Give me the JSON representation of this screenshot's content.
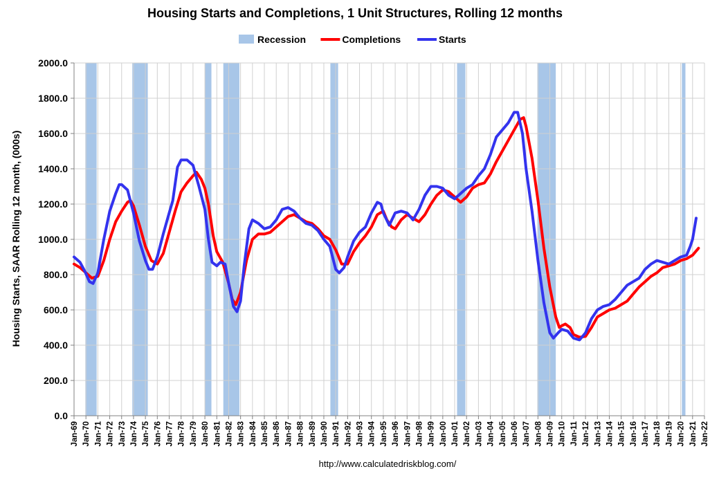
{
  "chart_data": {
    "type": "line",
    "title": "Housing Starts and Completions, 1 Unit Structures, Rolling 12 months",
    "ylabel": "Housing Starts, SAAR Rolling 12 month, (000s)",
    "xlabel": "",
    "source": "http://www.calculatedriskblog.com/",
    "ylim": [
      0,
      2000
    ],
    "xlim": [
      1969.0,
      2022.0
    ],
    "yticks": [
      "0.0",
      "200.0",
      "400.0",
      "600.0",
      "800.0",
      "1000.0",
      "1200.0",
      "1400.0",
      "1600.0",
      "1800.0",
      "2000.0"
    ],
    "xticks": [
      "Jan-69",
      "Jan-70",
      "Jan-71",
      "Jan-72",
      "Jan-73",
      "Jan-74",
      "Jan-75",
      "Jan-76",
      "Jan-77",
      "Jan-78",
      "Jan-79",
      "Jan-80",
      "Jan-81",
      "Jan-82",
      "Jan-83",
      "Jan-84",
      "Jan-85",
      "Jan-86",
      "Jan-87",
      "Jan-88",
      "Jan-89",
      "Jan-90",
      "Jan-91",
      "Jan-92",
      "Jan-93",
      "Jan-94",
      "Jan-95",
      "Jan-96",
      "Jan-97",
      "Jan-98",
      "Jan-99",
      "Jan-00",
      "Jan-01",
      "Jan-02",
      "Jan-03",
      "Jan-04",
      "Jan-05",
      "Jan-06",
      "Jan-07",
      "Jan-08",
      "Jan-09",
      "Jan-10",
      "Jan-11",
      "Jan-12",
      "Jan-13",
      "Jan-14",
      "Jan-15",
      "Jan-16",
      "Jan-17",
      "Jan-18",
      "Jan-19",
      "Jan-20",
      "Jan-21",
      "Jan-22"
    ],
    "grid": true,
    "legend_placement": "top-center",
    "recessions": [
      {
        "start": 1969.95,
        "end": 1970.9
      },
      {
        "start": 1973.9,
        "end": 1975.2
      },
      {
        "start": 1980.0,
        "end": 1980.55
      },
      {
        "start": 1981.55,
        "end": 1982.9
      },
      {
        "start": 1990.55,
        "end": 1991.2
      },
      {
        "start": 2001.2,
        "end": 2001.9
      },
      {
        "start": 2007.95,
        "end": 2009.5
      },
      {
        "start": 2020.1,
        "end": 2020.4
      }
    ],
    "series": [
      {
        "name": "Completions",
        "color": "#ff0000",
        "points": [
          [
            1969.0,
            860
          ],
          [
            1969.5,
            840
          ],
          [
            1970.0,
            810
          ],
          [
            1970.5,
            780
          ],
          [
            1971.0,
            790
          ],
          [
            1971.5,
            880
          ],
          [
            1972.0,
            1000
          ],
          [
            1972.5,
            1100
          ],
          [
            1973.0,
            1160
          ],
          [
            1973.5,
            1210
          ],
          [
            1973.75,
            1220
          ],
          [
            1974.0,
            1190
          ],
          [
            1974.5,
            1080
          ],
          [
            1975.0,
            960
          ],
          [
            1975.5,
            880
          ],
          [
            1976.0,
            860
          ],
          [
            1976.5,
            920
          ],
          [
            1977.0,
            1040
          ],
          [
            1977.5,
            1160
          ],
          [
            1978.0,
            1270
          ],
          [
            1978.5,
            1320
          ],
          [
            1979.0,
            1360
          ],
          [
            1979.3,
            1380
          ],
          [
            1979.7,
            1340
          ],
          [
            1980.0,
            1290
          ],
          [
            1980.3,
            1200
          ],
          [
            1980.7,
            1020
          ],
          [
            1981.0,
            930
          ],
          [
            1981.5,
            870
          ],
          [
            1982.0,
            750
          ],
          [
            1982.3,
            660
          ],
          [
            1982.6,
            630
          ],
          [
            1983.0,
            700
          ],
          [
            1983.5,
            880
          ],
          [
            1984.0,
            1000
          ],
          [
            1984.5,
            1030
          ],
          [
            1985.0,
            1030
          ],
          [
            1985.5,
            1040
          ],
          [
            1986.0,
            1070
          ],
          [
            1986.5,
            1100
          ],
          [
            1987.0,
            1130
          ],
          [
            1987.5,
            1140
          ],
          [
            1988.0,
            1120
          ],
          [
            1988.5,
            1100
          ],
          [
            1989.0,
            1090
          ],
          [
            1989.5,
            1060
          ],
          [
            1990.0,
            1020
          ],
          [
            1990.5,
            1000
          ],
          [
            1991.0,
            940
          ],
          [
            1991.5,
            860
          ],
          [
            1992.0,
            860
          ],
          [
            1992.5,
            930
          ],
          [
            1993.0,
            980
          ],
          [
            1993.5,
            1020
          ],
          [
            1994.0,
            1070
          ],
          [
            1994.5,
            1140
          ],
          [
            1995.0,
            1160
          ],
          [
            1995.3,
            1110
          ],
          [
            1995.7,
            1070
          ],
          [
            1996.0,
            1060
          ],
          [
            1996.5,
            1110
          ],
          [
            1997.0,
            1140
          ],
          [
            1997.5,
            1120
          ],
          [
            1998.0,
            1100
          ],
          [
            1998.5,
            1140
          ],
          [
            1999.0,
            1200
          ],
          [
            1999.5,
            1250
          ],
          [
            2000.0,
            1280
          ],
          [
            2000.5,
            1270
          ],
          [
            2001.0,
            1240
          ],
          [
            2001.5,
            1210
          ],
          [
            2002.0,
            1240
          ],
          [
            2002.5,
            1290
          ],
          [
            2003.0,
            1310
          ],
          [
            2003.5,
            1320
          ],
          [
            2004.0,
            1370
          ],
          [
            2004.5,
            1440
          ],
          [
            2005.0,
            1500
          ],
          [
            2005.5,
            1560
          ],
          [
            2006.0,
            1620
          ],
          [
            2006.5,
            1680
          ],
          [
            2006.8,
            1690
          ],
          [
            2007.0,
            1640
          ],
          [
            2007.5,
            1460
          ],
          [
            2008.0,
            1220
          ],
          [
            2008.5,
            950
          ],
          [
            2009.0,
            730
          ],
          [
            2009.5,
            560
          ],
          [
            2009.8,
            500
          ],
          [
            2010.0,
            510
          ],
          [
            2010.3,
            520
          ],
          [
            2010.7,
            500
          ],
          [
            2011.0,
            460
          ],
          [
            2011.5,
            445
          ],
          [
            2012.0,
            450
          ],
          [
            2012.5,
            500
          ],
          [
            2013.0,
            560
          ],
          [
            2013.5,
            580
          ],
          [
            2014.0,
            600
          ],
          [
            2014.5,
            610
          ],
          [
            2015.0,
            630
          ],
          [
            2015.5,
            650
          ],
          [
            2016.0,
            690
          ],
          [
            2016.5,
            730
          ],
          [
            2017.0,
            760
          ],
          [
            2017.5,
            790
          ],
          [
            2018.0,
            810
          ],
          [
            2018.5,
            840
          ],
          [
            2019.0,
            850
          ],
          [
            2019.5,
            860
          ],
          [
            2020.0,
            880
          ],
          [
            2020.5,
            890
          ],
          [
            2021.0,
            910
          ],
          [
            2021.5,
            950
          ]
        ]
      },
      {
        "name": "Starts",
        "color": "#3333ee",
        "points": [
          [
            1969.0,
            900
          ],
          [
            1969.5,
            870
          ],
          [
            1969.9,
            820
          ],
          [
            1970.3,
            760
          ],
          [
            1970.6,
            750
          ],
          [
            1971.0,
            810
          ],
          [
            1971.5,
            1000
          ],
          [
            1972.0,
            1160
          ],
          [
            1972.5,
            1260
          ],
          [
            1972.8,
            1310
          ],
          [
            1973.0,
            1310
          ],
          [
            1973.5,
            1280
          ],
          [
            1974.0,
            1150
          ],
          [
            1974.5,
            990
          ],
          [
            1975.0,
            880
          ],
          [
            1975.3,
            830
          ],
          [
            1975.6,
            830
          ],
          [
            1976.0,
            900
          ],
          [
            1976.5,
            1030
          ],
          [
            1977.0,
            1150
          ],
          [
            1977.3,
            1220
          ],
          [
            1977.7,
            1410
          ],
          [
            1978.0,
            1450
          ],
          [
            1978.5,
            1450
          ],
          [
            1979.0,
            1420
          ],
          [
            1979.5,
            1300
          ],
          [
            1980.0,
            1170
          ],
          [
            1980.3,
            1000
          ],
          [
            1980.6,
            870
          ],
          [
            1981.0,
            850
          ],
          [
            1981.3,
            870
          ],
          [
            1981.7,
            860
          ],
          [
            1982.0,
            750
          ],
          [
            1982.4,
            620
          ],
          [
            1982.7,
            590
          ],
          [
            1983.0,
            650
          ],
          [
            1983.3,
            850
          ],
          [
            1983.7,
            1060
          ],
          [
            1984.0,
            1110
          ],
          [
            1984.5,
            1090
          ],
          [
            1985.0,
            1060
          ],
          [
            1985.5,
            1070
          ],
          [
            1986.0,
            1110
          ],
          [
            1986.5,
            1170
          ],
          [
            1987.0,
            1180
          ],
          [
            1987.5,
            1160
          ],
          [
            1988.0,
            1120
          ],
          [
            1988.5,
            1090
          ],
          [
            1989.0,
            1080
          ],
          [
            1989.5,
            1050
          ],
          [
            1990.0,
            1000
          ],
          [
            1990.5,
            960
          ],
          [
            1991.0,
            830
          ],
          [
            1991.3,
            810
          ],
          [
            1991.7,
            840
          ],
          [
            1992.0,
            900
          ],
          [
            1992.5,
            990
          ],
          [
            1993.0,
            1040
          ],
          [
            1993.5,
            1070
          ],
          [
            1994.0,
            1150
          ],
          [
            1994.5,
            1210
          ],
          [
            1994.8,
            1200
          ],
          [
            1995.0,
            1150
          ],
          [
            1995.5,
            1080
          ],
          [
            1996.0,
            1150
          ],
          [
            1996.5,
            1160
          ],
          [
            1997.0,
            1150
          ],
          [
            1997.5,
            1110
          ],
          [
            1998.0,
            1170
          ],
          [
            1998.5,
            1250
          ],
          [
            1999.0,
            1300
          ],
          [
            1999.5,
            1300
          ],
          [
            2000.0,
            1290
          ],
          [
            2000.5,
            1250
          ],
          [
            2001.0,
            1230
          ],
          [
            2001.5,
            1260
          ],
          [
            2002.0,
            1290
          ],
          [
            2002.5,
            1310
          ],
          [
            2003.0,
            1360
          ],
          [
            2003.5,
            1400
          ],
          [
            2004.0,
            1480
          ],
          [
            2004.5,
            1580
          ],
          [
            2005.0,
            1620
          ],
          [
            2005.5,
            1660
          ],
          [
            2006.0,
            1720
          ],
          [
            2006.3,
            1720
          ],
          [
            2006.7,
            1600
          ],
          [
            2007.0,
            1400
          ],
          [
            2007.5,
            1160
          ],
          [
            2008.0,
            880
          ],
          [
            2008.5,
            640
          ],
          [
            2009.0,
            470
          ],
          [
            2009.3,
            440
          ],
          [
            2009.7,
            470
          ],
          [
            2010.0,
            490
          ],
          [
            2010.5,
            480
          ],
          [
            2011.0,
            440
          ],
          [
            2011.5,
            430
          ],
          [
            2012.0,
            470
          ],
          [
            2012.5,
            550
          ],
          [
            2013.0,
            600
          ],
          [
            2013.5,
            620
          ],
          [
            2014.0,
            630
          ],
          [
            2014.5,
            660
          ],
          [
            2015.0,
            700
          ],
          [
            2015.5,
            740
          ],
          [
            2016.0,
            760
          ],
          [
            2016.5,
            780
          ],
          [
            2017.0,
            830
          ],
          [
            2017.5,
            860
          ],
          [
            2018.0,
            880
          ],
          [
            2018.5,
            870
          ],
          [
            2019.0,
            860
          ],
          [
            2019.5,
            880
          ],
          [
            2020.0,
            900
          ],
          [
            2020.5,
            910
          ],
          [
            2020.8,
            960
          ],
          [
            2021.0,
            1000
          ],
          [
            2021.3,
            1120
          ]
        ]
      }
    ]
  },
  "legend": [
    {
      "label": "Recession",
      "color": "#a8c6e8",
      "kind": "swatch"
    },
    {
      "label": "Completions",
      "color": "#ff0000",
      "kind": "line"
    },
    {
      "label": "Starts",
      "color": "#3333ee",
      "kind": "line"
    }
  ]
}
